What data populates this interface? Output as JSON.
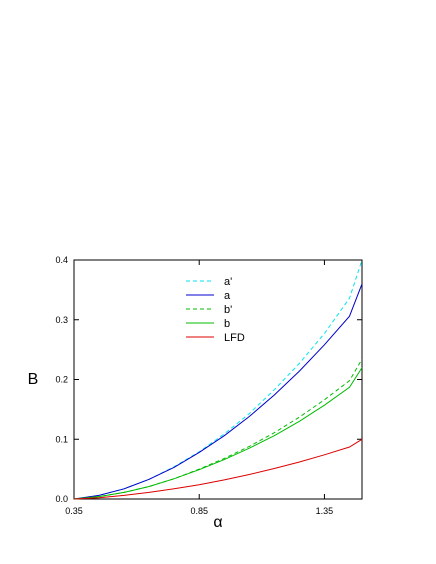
{
  "chart_data": {
    "type": "line",
    "xlabel": "α",
    "ylabel": "B",
    "xlim": [
      0.35,
      1.5
    ],
    "ylim": [
      0.0,
      0.4
    ],
    "x_ticks": [
      0.35,
      0.85,
      1.35
    ],
    "x_tick_labels": [
      "0.35",
      "0.85",
      "1.35"
    ],
    "y_ticks": [
      0.0,
      0.1,
      0.2,
      0.3,
      0.4
    ],
    "y_tick_labels": [
      "0.0",
      "0.1",
      "0.2",
      "0.3",
      "0.4"
    ],
    "grid": false,
    "legend_position": "top-center",
    "x": [
      0.35,
      0.45,
      0.55,
      0.65,
      0.75,
      0.85,
      0.95,
      1.05,
      1.15,
      1.25,
      1.35,
      1.45,
      1.5
    ],
    "series": [
      {
        "name": "a'",
        "color": "#00e5ee",
        "dash": true,
        "values": [
          0.0,
          0.006,
          0.017,
          0.033,
          0.054,
          0.079,
          0.109,
          0.143,
          0.183,
          0.227,
          0.277,
          0.336,
          0.4
        ]
      },
      {
        "name": "a",
        "color": "#0000cc",
        "dash": false,
        "values": [
          0.0,
          0.006,
          0.017,
          0.033,
          0.053,
          0.078,
          0.106,
          0.138,
          0.174,
          0.214,
          0.258,
          0.306,
          0.36
        ]
      },
      {
        "name": "b'",
        "color": "#00bb00",
        "dash": true,
        "values": [
          0.0,
          0.004,
          0.011,
          0.021,
          0.034,
          0.05,
          0.068,
          0.088,
          0.111,
          0.137,
          0.166,
          0.198,
          0.234
        ]
      },
      {
        "name": "b",
        "color": "#00bb00",
        "dash": false,
        "values": [
          0.0,
          0.004,
          0.011,
          0.021,
          0.034,
          0.049,
          0.066,
          0.085,
          0.106,
          0.13,
          0.157,
          0.187,
          0.22
        ]
      },
      {
        "name": "LFD",
        "color": "#dd0000",
        "dash": false,
        "values": [
          0.0,
          0.002,
          0.006,
          0.011,
          0.017,
          0.024,
          0.032,
          0.041,
          0.051,
          0.062,
          0.074,
          0.087,
          0.1
        ]
      }
    ]
  }
}
